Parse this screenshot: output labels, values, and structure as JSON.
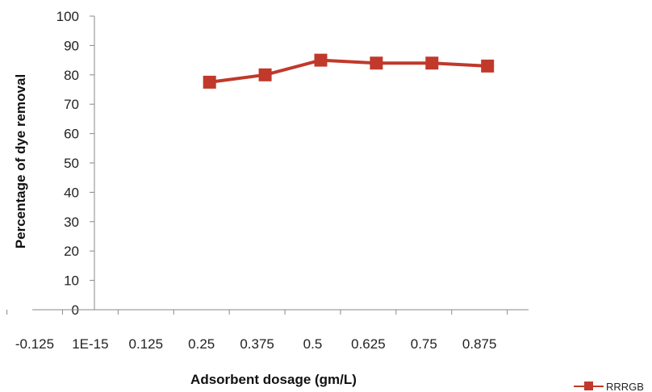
{
  "chart_data": {
    "type": "line",
    "x_tick_labels": [
      "-0.125",
      "1E-15",
      "0.125",
      "0.25",
      "0.375",
      "0.5",
      "0.625",
      "0.75",
      "0.875"
    ],
    "y_tick_labels": [
      "0",
      "10",
      "20",
      "30",
      "40",
      "50",
      "60",
      "70",
      "80",
      "90",
      "100"
    ],
    "xlabel": "Adsorbent dosage (gm/L)",
    "ylabel": "Percentage of dye removal",
    "xlim": [
      -0.125,
      0.875
    ],
    "ylim": [
      0,
      100
    ],
    "grid": false,
    "legend_position": "bottom-right",
    "series": [
      {
        "name": "RRRGB",
        "color": "#c0392b",
        "marker": "square",
        "x": [
          0.25,
          0.375,
          0.5,
          0.625,
          0.75,
          0.875
        ],
        "values": [
          77.5,
          80,
          85,
          84,
          84,
          83
        ]
      }
    ]
  }
}
